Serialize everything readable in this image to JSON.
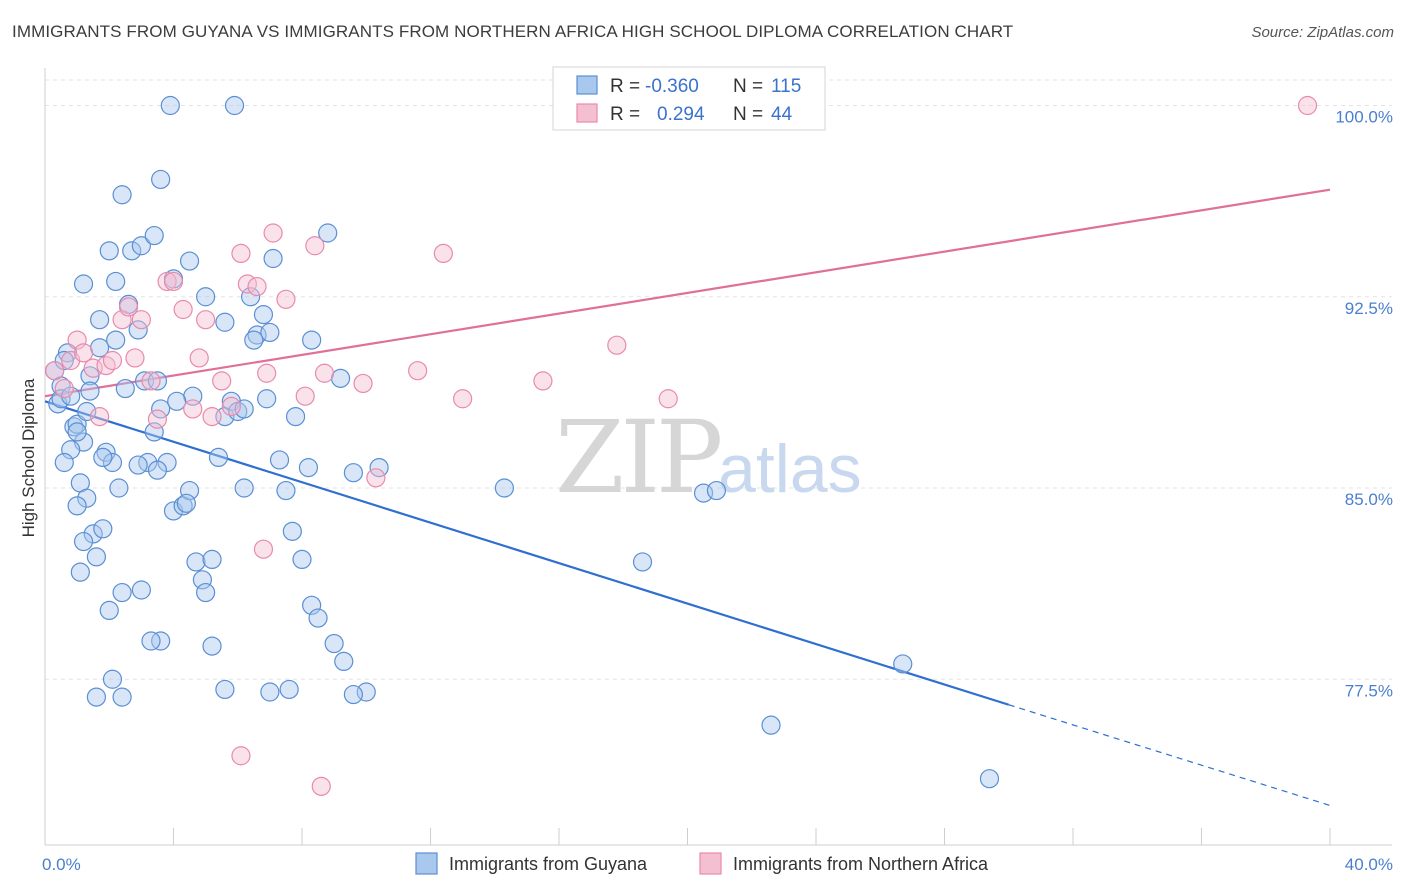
{
  "header": {
    "title": "IMMIGRANTS FROM GUYANA VS IMMIGRANTS FROM NORTHERN AFRICA HIGH SCHOOL DIPLOMA CORRELATION CHART",
    "source": "Source: ZipAtlas.com"
  },
  "watermark": {
    "zip": "ZIP",
    "atlas": "atlas"
  },
  "colors": {
    "blue_fill": "#a9c8ee",
    "blue_stroke": "#5b8fd4",
    "blue_line": "#2f6fd0",
    "pink_fill": "#f5bfd2",
    "pink_stroke": "#e98aac",
    "pink_line": "#e06f9a",
    "grid": "#e3e3e3",
    "tick_text": "#4a7fd0"
  },
  "legend": {
    "rows": [
      {
        "r_label": "R =",
        "r_value": "-0.360",
        "n_label": "N =",
        "n_value": "115"
      },
      {
        "r_label": "R =",
        "r_value": "0.294",
        "n_label": "N =",
        "n_value": "44"
      }
    ]
  },
  "bottom_legend": {
    "items": [
      "Immigrants from Guyana",
      "Immigrants from Northern Africa"
    ]
  },
  "chart_data": {
    "type": "scatter",
    "title": "IMMIGRANTS FROM GUYANA VS IMMIGRANTS FROM NORTHERN AFRICA HIGH SCHOOL DIPLOMA CORRELATION CHART",
    "xlabel": "",
    "ylabel": "High School Diploma",
    "xlim": [
      0,
      40
    ],
    "ylim": [
      71.0,
      101.0
    ],
    "x_tick_labels": [
      {
        "value": 0,
        "label": "0.0%"
      },
      {
        "value": 40,
        "label": "40.0%"
      }
    ],
    "y_ticks": [
      {
        "value": 77.5,
        "label": "77.5%"
      },
      {
        "value": 85.0,
        "label": "85.0%"
      },
      {
        "value": 92.5,
        "label": "92.5%"
      },
      {
        "value": 100.0,
        "label": "100.0%"
      }
    ],
    "x_minor_ticks": [
      0,
      4,
      8,
      12,
      16,
      20,
      24,
      28,
      32,
      36,
      40
    ],
    "series": [
      {
        "name": "Immigrants from Guyana",
        "color": "blue",
        "trend": {
          "x0": 0.0,
          "y0": 88.4,
          "x1": 30.0,
          "y1": 76.5,
          "dash_to_x": 40.0,
          "dash_to_y": 72.55
        },
        "points": [
          [
            0.3,
            89.6
          ],
          [
            0.5,
            89.0
          ],
          [
            0.7,
            90.3
          ],
          [
            0.9,
            87.4
          ],
          [
            0.4,
            88.3
          ],
          [
            0.6,
            90.0
          ],
          [
            1.0,
            87.5
          ],
          [
            1.2,
            86.8
          ],
          [
            0.8,
            86.5
          ],
          [
            1.4,
            89.4
          ],
          [
            1.1,
            85.2
          ],
          [
            1.3,
            84.6
          ],
          [
            1.5,
            83.2
          ],
          [
            1.0,
            84.3
          ],
          [
            1.2,
            82.9
          ],
          [
            1.6,
            82.3
          ],
          [
            1.1,
            81.7
          ],
          [
            1.8,
            83.4
          ],
          [
            1.9,
            86.4
          ],
          [
            2.1,
            86.0
          ],
          [
            2.3,
            85.0
          ],
          [
            2.4,
            80.9
          ],
          [
            2.0,
            80.2
          ],
          [
            2.5,
            88.9
          ],
          [
            2.2,
            90.8
          ],
          [
            1.7,
            91.6
          ],
          [
            2.6,
            92.2
          ],
          [
            2.9,
            91.2
          ],
          [
            3.1,
            89.2
          ],
          [
            3.4,
            87.2
          ],
          [
            3.6,
            88.1
          ],
          [
            3.8,
            86.0
          ],
          [
            3.2,
            86.0
          ],
          [
            4.0,
            84.1
          ],
          [
            4.3,
            84.3
          ],
          [
            4.5,
            84.9
          ],
          [
            4.7,
            82.1
          ],
          [
            4.9,
            81.4
          ],
          [
            5.0,
            80.9
          ],
          [
            5.2,
            82.2
          ],
          [
            5.4,
            86.2
          ],
          [
            5.6,
            87.8
          ],
          [
            5.8,
            88.4
          ],
          [
            6.0,
            88.0
          ],
          [
            6.2,
            88.1
          ],
          [
            6.4,
            92.5
          ],
          [
            6.6,
            91.0
          ],
          [
            6.8,
            91.8
          ],
          [
            7.0,
            91.1
          ],
          [
            7.3,
            86.1
          ],
          [
            7.5,
            84.9
          ],
          [
            7.7,
            83.3
          ],
          [
            8.0,
            82.2
          ],
          [
            8.3,
            80.4
          ],
          [
            8.5,
            79.9
          ],
          [
            9.0,
            78.9
          ],
          [
            9.3,
            78.2
          ],
          [
            9.6,
            85.6
          ],
          [
            10.0,
            77.0
          ],
          [
            10.4,
            85.8
          ],
          [
            8.2,
            85.8
          ],
          [
            9.2,
            89.3
          ],
          [
            7.8,
            87.8
          ],
          [
            6.9,
            88.5
          ],
          [
            4.6,
            88.6
          ],
          [
            4.1,
            88.4
          ],
          [
            3.5,
            89.2
          ],
          [
            2.7,
            94.3
          ],
          [
            2.2,
            93.1
          ],
          [
            1.7,
            90.5
          ],
          [
            1.4,
            88.8
          ],
          [
            1.3,
            88.0
          ],
          [
            2.0,
            94.3
          ],
          [
            2.4,
            96.5
          ],
          [
            3.0,
            94.5
          ],
          [
            3.4,
            94.9
          ],
          [
            3.6,
            97.1
          ],
          [
            4.0,
            93.2
          ],
          [
            4.5,
            93.9
          ],
          [
            5.0,
            92.5
          ],
          [
            5.6,
            91.5
          ],
          [
            6.5,
            90.8
          ],
          [
            7.1,
            94.0
          ],
          [
            8.3,
            90.8
          ],
          [
            8.8,
            95.0
          ],
          [
            3.9,
            100.0
          ],
          [
            5.9,
            100.0
          ],
          [
            2.1,
            77.5
          ],
          [
            1.6,
            76.8
          ],
          [
            2.4,
            76.8
          ],
          [
            5.2,
            78.8
          ],
          [
            3.6,
            79.0
          ],
          [
            5.6,
            77.1
          ],
          [
            7.0,
            77.0
          ],
          [
            7.6,
            77.1
          ],
          [
            9.6,
            76.9
          ],
          [
            3.0,
            81.0
          ],
          [
            3.3,
            79.0
          ],
          [
            4.4,
            84.4
          ],
          [
            1.0,
            87.2
          ],
          [
            0.6,
            86.0
          ],
          [
            0.5,
            88.5
          ],
          [
            1.8,
            86.2
          ],
          [
            2.9,
            85.9
          ],
          [
            3.5,
            85.7
          ],
          [
            6.2,
            85.0
          ],
          [
            14.3,
            85.0
          ],
          [
            18.6,
            82.1
          ],
          [
            26.7,
            78.1
          ],
          [
            20.5,
            84.8
          ],
          [
            20.9,
            84.9
          ],
          [
            22.6,
            75.7
          ],
          [
            29.4,
            73.6
          ],
          [
            1.2,
            93.0
          ],
          [
            0.8,
            88.6
          ]
        ]
      },
      {
        "name": "Immigrants from Northern Africa",
        "color": "pink",
        "trend": {
          "x0": 0.0,
          "y0": 88.6,
          "x1": 40.0,
          "y1": 96.7
        },
        "points": [
          [
            0.3,
            89.6
          ],
          [
            0.6,
            88.9
          ],
          [
            0.8,
            90.0
          ],
          [
            1.0,
            90.8
          ],
          [
            1.2,
            90.3
          ],
          [
            1.5,
            89.7
          ],
          [
            1.7,
            87.8
          ],
          [
            1.9,
            89.8
          ],
          [
            2.1,
            90.0
          ],
          [
            2.4,
            91.6
          ],
          [
            2.6,
            92.1
          ],
          [
            2.8,
            90.1
          ],
          [
            3.0,
            91.6
          ],
          [
            3.3,
            89.2
          ],
          [
            3.5,
            87.7
          ],
          [
            3.8,
            93.1
          ],
          [
            4.0,
            93.1
          ],
          [
            4.3,
            92.0
          ],
          [
            4.6,
            88.1
          ],
          [
            4.8,
            90.1
          ],
          [
            5.0,
            91.6
          ],
          [
            5.2,
            87.8
          ],
          [
            5.5,
            89.2
          ],
          [
            5.8,
            88.2
          ],
          [
            6.1,
            94.2
          ],
          [
            6.3,
            93.0
          ],
          [
            6.6,
            92.9
          ],
          [
            6.9,
            89.5
          ],
          [
            7.1,
            95.0
          ],
          [
            7.5,
            92.4
          ],
          [
            8.1,
            88.6
          ],
          [
            8.4,
            94.5
          ],
          [
            8.7,
            89.5
          ],
          [
            9.9,
            89.1
          ],
          [
            10.3,
            85.4
          ],
          [
            11.6,
            89.6
          ],
          [
            12.4,
            94.2
          ],
          [
            13.0,
            88.5
          ],
          [
            15.5,
            89.2
          ],
          [
            17.8,
            90.6
          ],
          [
            19.4,
            88.5
          ],
          [
            6.8,
            82.6
          ],
          [
            6.1,
            74.5
          ],
          [
            8.6,
            73.3
          ]
        ]
      },
      {
        "name": "outlier-pink-top",
        "color": "pink",
        "points": [
          [
            39.3,
            100.0
          ]
        ]
      }
    ],
    "grid": true,
    "legend_position": "top-center"
  }
}
